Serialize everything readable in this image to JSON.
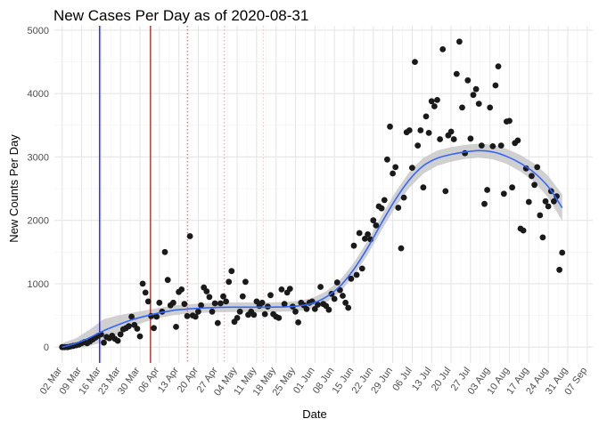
{
  "chart_data": {
    "type": "scatter",
    "title": "New Cases Per Day as of 2020-08-31",
    "xlabel": "Date",
    "ylabel": "New Counts Per Day",
    "x_range_days": [
      -2.8,
      191.0
    ],
    "ylim": [
      -250,
      5070
    ],
    "grid": true,
    "y_ticks": [
      0,
      1000,
      2000,
      3000,
      4000,
      5000
    ],
    "x_ticks": [
      {
        "day": 0,
        "label": "02 Mar"
      },
      {
        "day": 7,
        "label": "09 Mar"
      },
      {
        "day": 14,
        "label": "16 Mar"
      },
      {
        "day": 21,
        "label": "23 Mar"
      },
      {
        "day": 28,
        "label": "30 Mar"
      },
      {
        "day": 35,
        "label": "06 Apr"
      },
      {
        "day": 42,
        "label": "13 Apr"
      },
      {
        "day": 49,
        "label": "20 Apr"
      },
      {
        "day": 56,
        "label": "27 Apr"
      },
      {
        "day": 63,
        "label": "04 May"
      },
      {
        "day": 70,
        "label": "11 May"
      },
      {
        "day": 77,
        "label": "18 May"
      },
      {
        "day": 84,
        "label": "25 May"
      },
      {
        "day": 91,
        "label": "01 Jun"
      },
      {
        "day": 98,
        "label": "08 Jun"
      },
      {
        "day": 105,
        "label": "15 Jun"
      },
      {
        "day": 112,
        "label": "22 Jun"
      },
      {
        "day": 119,
        "label": "29 Jun"
      },
      {
        "day": 126,
        "label": "06 Jul"
      },
      {
        "day": 133,
        "label": "13 Jul"
      },
      {
        "day": 140,
        "label": "20 Jul"
      },
      {
        "day": 147,
        "label": "27 Jul"
      },
      {
        "day": 154,
        "label": "03 Aug"
      },
      {
        "day": 161,
        "label": "10 Aug"
      },
      {
        "day": 168,
        "label": "17 Aug"
      },
      {
        "day": 175,
        "label": "24 Aug"
      },
      {
        "day": 182,
        "label": "31 Aug"
      },
      {
        "day": 189,
        "label": "07 Sep"
      }
    ],
    "vertical_lines": [
      {
        "day": 13.5,
        "color": "#0000ff",
        "style": "solid"
      },
      {
        "day": 31.8,
        "color": "#cc0000",
        "style": "solid"
      },
      {
        "day": 45.1,
        "color": "#e06666",
        "style": "dotted"
      },
      {
        "day": 58.4,
        "color": "#f2a0a0",
        "style": "dotted"
      },
      {
        "day": 72.4,
        "color": "#f7c6c6",
        "style": "dotted"
      }
    ],
    "points_color": "#1a1a1a",
    "smooth_color": "#3366ff",
    "ribbon_color": "#c8c8c8",
    "points": [
      [
        0,
        0
      ],
      [
        1,
        0
      ],
      [
        2,
        0
      ],
      [
        3,
        10
      ],
      [
        4,
        20
      ],
      [
        5,
        30
      ],
      [
        6,
        40
      ],
      [
        7,
        60
      ],
      [
        8,
        80
      ],
      [
        9,
        60
      ],
      [
        10,
        90
      ],
      [
        11,
        120
      ],
      [
        12,
        150
      ],
      [
        13,
        180
      ],
      [
        14,
        200
      ],
      [
        15,
        70
      ],
      [
        16,
        160
      ],
      [
        17,
        140
      ],
      [
        18,
        180
      ],
      [
        19,
        130
      ],
      [
        20,
        100
      ],
      [
        21,
        200
      ],
      [
        22,
        280
      ],
      [
        23,
        300
      ],
      [
        24,
        330
      ],
      [
        25,
        480
      ],
      [
        26,
        350
      ],
      [
        27,
        290
      ],
      [
        28,
        170
      ],
      [
        29,
        1000
      ],
      [
        30,
        860
      ],
      [
        31,
        720
      ],
      [
        32,
        490
      ],
      [
        33,
        300
      ],
      [
        34,
        480
      ],
      [
        35,
        700
      ],
      [
        36,
        560
      ],
      [
        37,
        1500
      ],
      [
        38,
        1060
      ],
      [
        39,
        660
      ],
      [
        40,
        700
      ],
      [
        41,
        320
      ],
      [
        42,
        870
      ],
      [
        43,
        910
      ],
      [
        44,
        680
      ],
      [
        45,
        490
      ],
      [
        46,
        1750
      ],
      [
        47,
        500
      ],
      [
        48,
        480
      ],
      [
        49,
        560
      ],
      [
        50,
        660
      ],
      [
        51,
        940
      ],
      [
        52,
        880
      ],
      [
        53,
        790
      ],
      [
        54,
        560
      ],
      [
        55,
        690
      ],
      [
        56,
        380
      ],
      [
        57,
        690
      ],
      [
        58,
        800
      ],
      [
        59,
        720
      ],
      [
        60,
        1030
      ],
      [
        61,
        1200
      ],
      [
        62,
        400
      ],
      [
        63,
        460
      ],
      [
        64,
        560
      ],
      [
        65,
        800
      ],
      [
        66,
        1030
      ],
      [
        67,
        510
      ],
      [
        68,
        560
      ],
      [
        69,
        510
      ],
      [
        70,
        720
      ],
      [
        71,
        650
      ],
      [
        72,
        700
      ],
      [
        73,
        520
      ],
      [
        74,
        640
      ],
      [
        75,
        820
      ],
      [
        76,
        520
      ],
      [
        77,
        480
      ],
      [
        78,
        460
      ],
      [
        79,
        910
      ],
      [
        80,
        680
      ],
      [
        81,
        860
      ],
      [
        82,
        920
      ],
      [
        83,
        640
      ],
      [
        84,
        560
      ],
      [
        85,
        390
      ],
      [
        86,
        700
      ],
      [
        87,
        660
      ],
      [
        88,
        600
      ],
      [
        89,
        700
      ],
      [
        90,
        720
      ],
      [
        91,
        600
      ],
      [
        92,
        670
      ],
      [
        93,
        950
      ],
      [
        94,
        680
      ],
      [
        95,
        650
      ],
      [
        96,
        590
      ],
      [
        97,
        840
      ],
      [
        98,
        760
      ],
      [
        99,
        1020
      ],
      [
        100,
        900
      ],
      [
        101,
        810
      ],
      [
        102,
        700
      ],
      [
        103,
        620
      ],
      [
        104,
        1080
      ],
      [
        105,
        1600
      ],
      [
        106,
        1140
      ],
      [
        107,
        1800
      ],
      [
        108,
        1240
      ],
      [
        109,
        1710
      ],
      [
        110,
        1780
      ],
      [
        111,
        1700
      ],
      [
        112,
        2000
      ],
      [
        113,
        1920
      ],
      [
        114,
        2220
      ],
      [
        115,
        2190
      ],
      [
        116,
        2320
      ],
      [
        117,
        2960
      ],
      [
        118,
        3480
      ],
      [
        119,
        2740
      ],
      [
        120,
        2840
      ],
      [
        121,
        2200
      ],
      [
        122,
        1560
      ],
      [
        123,
        2360
      ],
      [
        124,
        3390
      ],
      [
        125,
        3420
      ],
      [
        126,
        2830
      ],
      [
        127,
        4500
      ],
      [
        128,
        3180
      ],
      [
        129,
        3420
      ],
      [
        130,
        2520
      ],
      [
        131,
        3640
      ],
      [
        132,
        3380
      ],
      [
        133,
        3880
      ],
      [
        134,
        3800
      ],
      [
        135,
        3900
      ],
      [
        136,
        3280
      ],
      [
        137,
        4700
      ],
      [
        138,
        2460
      ],
      [
        139,
        3340
      ],
      [
        140,
        3400
      ],
      [
        141,
        3280
      ],
      [
        142,
        4310
      ],
      [
        143,
        4820
      ],
      [
        144,
        3780
      ],
      [
        145,
        3060
      ],
      [
        146,
        4210
      ],
      [
        147,
        3290
      ],
      [
        148,
        3980
      ],
      [
        149,
        4070
      ],
      [
        150,
        3840
      ],
      [
        151,
        3180
      ],
      [
        152,
        2260
      ],
      [
        153,
        2480
      ],
      [
        154,
        3780
      ],
      [
        155,
        3170
      ],
      [
        156,
        4130
      ],
      [
        157,
        4430
      ],
      [
        158,
        3180
      ],
      [
        159,
        2420
      ],
      [
        160,
        3560
      ],
      [
        161,
        3570
      ],
      [
        162,
        2520
      ],
      [
        163,
        3220
      ],
      [
        164,
        3260
      ],
      [
        165,
        1870
      ],
      [
        166,
        1840
      ],
      [
        167,
        2820
      ],
      [
        168,
        2290
      ],
      [
        169,
        2700
      ],
      [
        170,
        2560
      ],
      [
        171,
        2840
      ],
      [
        172,
        2080
      ],
      [
        173,
        1730
      ],
      [
        174,
        2300
      ],
      [
        175,
        2220
      ],
      [
        176,
        2460
      ],
      [
        177,
        2300
      ],
      [
        178,
        2380
      ],
      [
        179,
        1220
      ],
      [
        180,
        1490
      ]
    ],
    "smooth_fit": [
      [
        0,
        0
      ],
      [
        5,
        60
      ],
      [
        10,
        150
      ],
      [
        15,
        260
      ],
      [
        20,
        350
      ],
      [
        25,
        430
      ],
      [
        30,
        490
      ],
      [
        35,
        540
      ],
      [
        40,
        580
      ],
      [
        45,
        600
      ],
      [
        50,
        615
      ],
      [
        55,
        625
      ],
      [
        60,
        630
      ],
      [
        65,
        630
      ],
      [
        70,
        630
      ],
      [
        75,
        630
      ],
      [
        80,
        635
      ],
      [
        85,
        650
      ],
      [
        90,
        690
      ],
      [
        95,
        790
      ],
      [
        100,
        960
      ],
      [
        105,
        1230
      ],
      [
        110,
        1570
      ],
      [
        115,
        1960
      ],
      [
        120,
        2330
      ],
      [
        125,
        2640
      ],
      [
        130,
        2860
      ],
      [
        135,
        2980
      ],
      [
        140,
        3040
      ],
      [
        145,
        3080
      ],
      [
        150,
        3100
      ],
      [
        155,
        3080
      ],
      [
        160,
        3010
      ],
      [
        165,
        2900
      ],
      [
        170,
        2750
      ],
      [
        175,
        2530
      ],
      [
        180,
        2200
      ]
    ],
    "ribbon_halfwidth": [
      [
        0,
        60
      ],
      [
        5,
        80
      ],
      [
        10,
        130
      ],
      [
        15,
        180
      ],
      [
        20,
        150
      ],
      [
        25,
        110
      ],
      [
        30,
        90
      ],
      [
        35,
        80
      ],
      [
        40,
        75
      ],
      [
        45,
        75
      ],
      [
        50,
        75
      ],
      [
        55,
        75
      ],
      [
        60,
        75
      ],
      [
        65,
        75
      ],
      [
        70,
        75
      ],
      [
        75,
        75
      ],
      [
        80,
        75
      ],
      [
        85,
        80
      ],
      [
        90,
        85
      ],
      [
        95,
        90
      ],
      [
        100,
        95
      ],
      [
        105,
        100
      ],
      [
        110,
        110
      ],
      [
        115,
        115
      ],
      [
        120,
        120
      ],
      [
        125,
        125
      ],
      [
        130,
        125
      ],
      [
        135,
        120
      ],
      [
        140,
        115
      ],
      [
        145,
        110
      ],
      [
        150,
        110
      ],
      [
        155,
        115
      ],
      [
        160,
        120
      ],
      [
        165,
        130
      ],
      [
        170,
        145
      ],
      [
        175,
        170
      ],
      [
        180,
        210
      ]
    ]
  }
}
